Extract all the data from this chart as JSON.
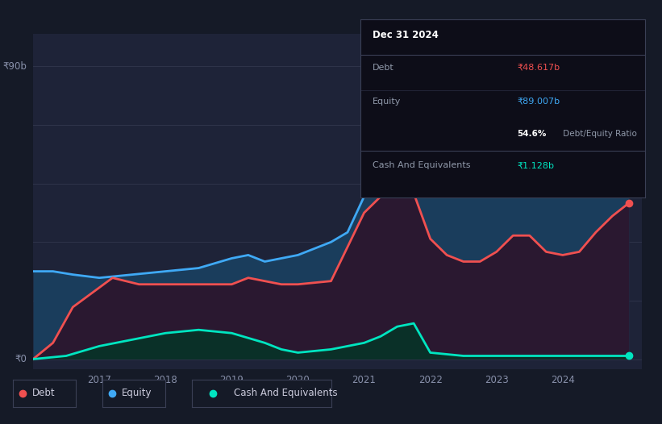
{
  "background_color": "#151a27",
  "plot_bg_color": "#1e2338",
  "equity_color": "#3fa9f5",
  "debt_color": "#f05050",
  "cash_color": "#00e5c0",
  "legend_items": [
    "Debt",
    "Equity",
    "Cash And Equivalents"
  ],
  "info_box": {
    "title": "Dec 31 2024",
    "debt_label": "Debt",
    "debt_value": "₹48.617b",
    "equity_label": "Equity",
    "equity_value": "₹89.007b",
    "ratio_bold": "54.6%",
    "ratio_rest": " Debt/Equity Ratio",
    "cash_label": "Cash And Equivalents",
    "cash_value": "₹1.128b"
  },
  "ylabel_top": "₹90b",
  "ylabel_bottom": "₹0",
  "x_labels": [
    "2017",
    "2018",
    "2019",
    "2020",
    "2021",
    "2022",
    "2023",
    "2024"
  ],
  "x_ticks": [
    2017,
    2018,
    2019,
    2020,
    2021,
    2022,
    2023,
    2024
  ],
  "ylim": [
    -3,
    100
  ],
  "xlim": [
    2016.0,
    2025.2
  ],
  "equity_x": [
    2016.0,
    2016.3,
    2016.6,
    2017.0,
    2017.5,
    2018.0,
    2018.5,
    2019.0,
    2019.25,
    2019.5,
    2019.75,
    2020.0,
    2020.25,
    2020.5,
    2020.75,
    2021.0,
    2021.25,
    2021.5,
    2021.75,
    2022.0,
    2022.25,
    2022.5,
    2022.75,
    2023.0,
    2023.25,
    2023.5,
    2023.75,
    2024.0,
    2024.25,
    2024.5,
    2024.75,
    2025.0
  ],
  "equity_y": [
    27,
    27,
    26,
    25,
    26,
    27,
    28,
    31,
    32,
    30,
    31,
    32,
    34,
    36,
    39,
    50,
    55,
    57,
    59,
    87,
    86,
    86,
    85,
    84,
    84,
    84,
    84,
    84,
    84,
    85,
    87,
    89
  ],
  "debt_x": [
    2016.0,
    2016.3,
    2016.6,
    2017.0,
    2017.2,
    2017.4,
    2017.6,
    2018.0,
    2018.5,
    2019.0,
    2019.25,
    2019.5,
    2019.75,
    2020.0,
    2020.5,
    2021.0,
    2021.25,
    2021.5,
    2021.6,
    2021.75,
    2022.0,
    2022.25,
    2022.5,
    2022.75,
    2023.0,
    2023.25,
    2023.5,
    2023.75,
    2024.0,
    2024.25,
    2024.5,
    2024.75,
    2025.0
  ],
  "debt_y": [
    0,
    5,
    16,
    22,
    25,
    24,
    23,
    23,
    23,
    23,
    25,
    24,
    23,
    23,
    24,
    45,
    50,
    52,
    52,
    51,
    37,
    32,
    30,
    30,
    33,
    38,
    38,
    33,
    32,
    33,
    39,
    44,
    48
  ],
  "cash_x": [
    2016.0,
    2016.5,
    2017.0,
    2017.5,
    2018.0,
    2018.5,
    2019.0,
    2019.5,
    2019.75,
    2020.0,
    2020.5,
    2021.0,
    2021.25,
    2021.5,
    2021.75,
    2022.0,
    2022.5,
    2023.0,
    2023.5,
    2024.0,
    2024.5,
    2025.0
  ],
  "cash_y": [
    0,
    1,
    4,
    6,
    8,
    9,
    8,
    5,
    3,
    2,
    3,
    5,
    7,
    10,
    11,
    2,
    1,
    1,
    1,
    1,
    1,
    1
  ],
  "grid_y": [
    0,
    18,
    36,
    54,
    72,
    90
  ],
  "equity_fill_color": "#1a3d5c",
  "debt_fill_color": "#2a1830",
  "cash_fill_color": "#0a3028"
}
